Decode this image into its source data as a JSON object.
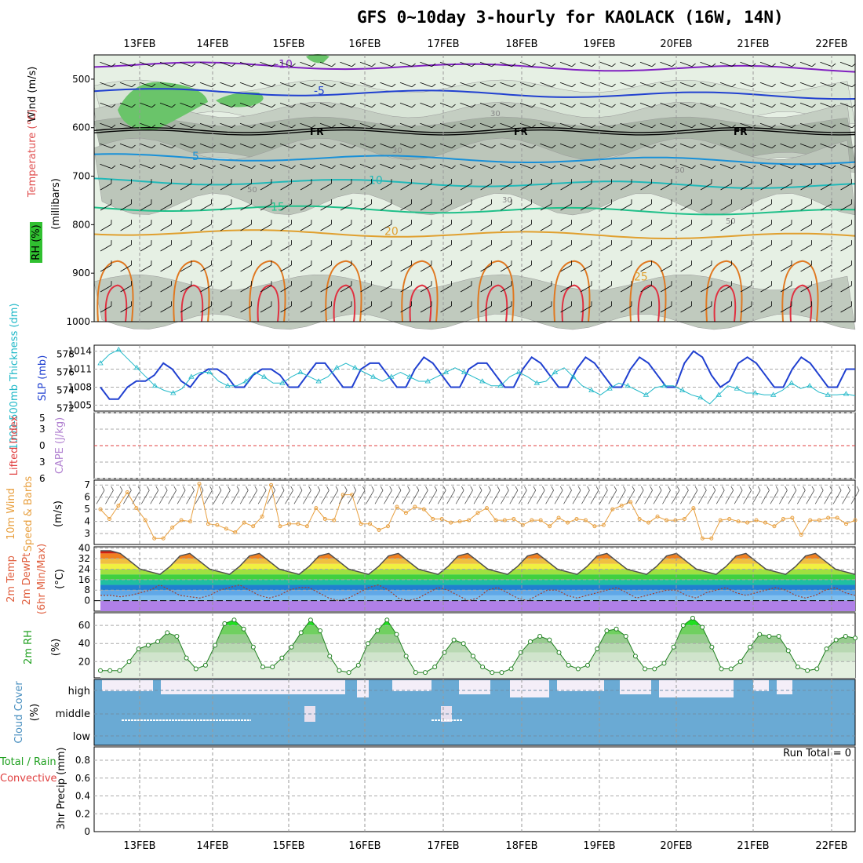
{
  "title": "GFS 0~10day 3-hourly for KAOLACK (16W, 14N)",
  "dates": [
    "13FEB",
    "14FEB",
    "15FEB",
    "16FEB",
    "17FEB",
    "18FEB",
    "19FEB",
    "20FEB",
    "21FEB",
    "22FEB"
  ],
  "colors": {
    "grid": "#aaaaaa",
    "frame": "#000000",
    "slp": "#2040d0",
    "thick": "#20b8c8",
    "wind10": "#e8a040",
    "temp": "#505050",
    "rh": "#20c020",
    "cloud": "#6aaad4",
    "cloudbg": "#f4eef8",
    "cape": "#b080d0",
    "li": "#e04040"
  },
  "labels": {
    "upper_y": {
      "wind": "Wind (m/s)",
      "temp": "Temperature (°C)",
      "rh": "RH (%)",
      "mb": "(millibars)"
    },
    "slp_y": {
      "thick": "1000-500mb Thickness (dm)",
      "slp": "SLP (mb)"
    },
    "li_y": {
      "li": "Lifted Index",
      "cape": "CAPE (J/kg)"
    },
    "wind_y": {
      "main": "10m Wind Speed & Barbs",
      "unit": "(m/s)"
    },
    "temp_y": {
      "main": "2m Temp",
      "sub": "2m DewPt",
      "sub2": "(6hr Min/Max)",
      "unit": "(°C)"
    },
    "rh_y": {
      "main": "2m RH",
      "unit": "(%)"
    },
    "cloud_y": {
      "main": "Cloud Cover",
      "unit": "(%)"
    },
    "cloud_levels": [
      "high",
      "middle",
      "low"
    ],
    "precip_y": {
      "main": "3hr Precip (mm)",
      "total": "Total / Rain",
      "conv": "Convective"
    },
    "run_total": "Run Total = 0",
    "contour_labels": {
      "fr": "FR",
      "m10": "-10",
      "m5": "-5",
      "p5": "5",
      "p10": "10",
      "p15": "15",
      "p20": "20",
      "p25": "25",
      "rh30": "30",
      "rh50": "50"
    }
  },
  "chart_data": [
    {
      "type": "contour",
      "name": "meteogram-upper",
      "title": "GFS 0~10day 3-hourly for KAOLACK (16W, 14N)",
      "y_axis": {
        "label": "millibars",
        "ticks": [
          500,
          600,
          700,
          800,
          900,
          1000
        ],
        "range": [
          450,
          1000
        ]
      },
      "temperature_isotherms": [
        -10,
        -5,
        0,
        5,
        10,
        15,
        20,
        25
      ],
      "freezing_level_mb": 605,
      "rh_shading_levels": [
        30,
        50,
        70,
        90
      ]
    },
    {
      "type": "line",
      "name": "slp-thickness",
      "x": "3-hourly 13FEB-22FEB",
      "y_left": {
        "label": "1000-500mb Thickness (dm)",
        "ticks": [
          572,
          574,
          576,
          578
        ]
      },
      "y_right": {
        "label": "SLP (mb)",
        "ticks": [
          1005,
          1008,
          1011,
          1014
        ]
      },
      "series": [
        {
          "name": "SLP (mb)",
          "values": [
            1008,
            1006,
            1006,
            1008,
            1009,
            1009,
            1010,
            1012,
            1011,
            1009,
            1008,
            1010,
            1011,
            1011,
            1010,
            1008,
            1008,
            1010,
            1011,
            1011,
            1010,
            1008,
            1008,
            1010,
            1012,
            1012,
            1010,
            1008,
            1008,
            1011,
            1012,
            1012,
            1010,
            1008,
            1008,
            1011,
            1013,
            1012,
            1010,
            1008,
            1008,
            1011,
            1012,
            1012,
            1010,
            1008,
            1008,
            1011,
            1013,
            1012,
            1010,
            1008,
            1008,
            1011,
            1013,
            1012,
            1010,
            1008,
            1008,
            1011,
            1013,
            1012,
            1010,
            1008,
            1008,
            1012,
            1014,
            1013,
            1010,
            1008,
            1009,
            1012,
            1013,
            1012,
            1010,
            1008,
            1008,
            1011,
            1013,
            1012,
            1010,
            1008,
            1008,
            1011,
            1011
          ]
        },
        {
          "name": "1000-500mb Thickness (dm)",
          "values": [
            577,
            578,
            578.5,
            577.5,
            576.5,
            575.5,
            574.5,
            574,
            573.7,
            574.2,
            575.5,
            576,
            576,
            575,
            574.5,
            574.5,
            575,
            576,
            575.5,
            574.8,
            574.8,
            575.5,
            576,
            575.5,
            575,
            575.5,
            576.5,
            577,
            576.5,
            576,
            575.5,
            575,
            575.5,
            576,
            575.5,
            575,
            575,
            575.5,
            576,
            576.5,
            576,
            575.5,
            575,
            574.5,
            574.5,
            575.5,
            576,
            575.5,
            574.8,
            575,
            576,
            576.5,
            575.5,
            574.5,
            574,
            573.5,
            574.2,
            574.8,
            574.5,
            574,
            573.5,
            574.3,
            574.5,
            574.5,
            574,
            573.5,
            573.2,
            572.5,
            573.5,
            574.5,
            574.2,
            573.7,
            573.7,
            573.5,
            573.5,
            574,
            574.8,
            574.2,
            574.5,
            573.8,
            573.5,
            573.5,
            573.6,
            573.4
          ]
        }
      ]
    },
    {
      "type": "line",
      "name": "lifted-index-cape",
      "y_axis": {
        "label": "Lifted Index",
        "ticks": [
          -5,
          -3,
          0,
          3,
          6
        ]
      },
      "series": [
        {
          "name": "CAPE (J/kg)",
          "values": []
        }
      ]
    },
    {
      "type": "line",
      "name": "10m-wind",
      "y_axis": {
        "label": "(m/s)",
        "ticks": [
          3,
          4,
          5,
          6,
          7
        ]
      },
      "series": [
        {
          "name": "10m Wind Speed",
          "values": [
            5,
            4.2,
            5.3,
            6.4,
            5.1,
            4.1,
            2.6,
            2.6,
            3.5,
            4.1,
            4,
            7.1,
            3.8,
            3.7,
            3.4,
            3.1,
            3.9,
            3.6,
            4.4,
            7,
            3.6,
            3.8,
            3.8,
            3.6,
            5.1,
            4.2,
            4.1,
            6.2,
            6.2,
            3.8,
            3.8,
            3.3,
            3.6,
            5.2,
            4.7,
            5.2,
            5,
            4.2,
            4.2,
            3.9,
            4,
            4.1,
            4.7,
            5.1,
            4.1,
            4.1,
            4.2,
            3.7,
            4.1,
            4.1,
            3.6,
            4.3,
            3.9,
            4.2,
            4.1,
            3.6,
            3.7,
            5,
            5.3,
            5.6,
            4.2,
            3.9,
            4.4,
            4.1,
            4.1,
            4.2,
            5.1,
            2.6,
            2.6,
            4.1,
            4.2,
            4,
            3.9,
            4.1,
            3.9,
            3.6,
            4.2,
            4.3,
            2.9,
            4.1,
            4.1,
            4.3,
            4.3,
            3.8,
            4.1
          ]
        }
      ]
    },
    {
      "type": "area",
      "name": "2m-temperature",
      "y_axis": {
        "label": "(°C)",
        "ticks": [
          0,
          8,
          16,
          24,
          32,
          40
        ],
        "range": [
          -8,
          40
        ]
      },
      "series": [
        {
          "name": "2m Temp",
          "values": [
            38,
            38,
            36,
            30,
            24,
            22,
            20,
            26,
            34,
            36,
            30,
            24,
            22,
            20,
            26,
            34,
            36,
            30,
            24,
            22,
            20,
            26,
            34,
            36,
            30,
            24,
            22,
            20,
            26,
            34,
            36,
            30,
            24,
            22,
            20,
            26,
            34,
            36,
            30,
            24,
            22,
            20,
            26,
            34,
            36,
            30,
            24,
            22,
            20,
            26,
            34,
            36,
            30,
            24,
            22,
            20,
            26,
            34,
            36,
            30,
            24,
            22,
            20,
            26,
            34,
            36,
            30,
            24,
            22,
            20,
            26,
            34,
            36,
            30,
            24,
            22,
            20
          ]
        },
        {
          "name": "2m DewPt",
          "values": [
            4,
            4,
            3,
            4,
            6,
            8,
            12,
            8,
            4,
            3,
            2,
            4,
            8,
            10,
            12,
            8,
            4,
            2,
            4,
            8,
            10,
            10,
            6,
            2,
            0,
            2,
            6,
            10,
            12,
            8,
            2,
            0,
            2,
            6,
            10,
            8,
            4,
            0,
            2,
            8,
            10,
            6,
            2,
            0,
            4,
            8,
            8,
            4,
            2,
            4,
            6,
            8,
            10,
            6,
            2,
            4,
            6,
            8,
            8,
            4,
            2,
            6,
            8,
            10,
            6,
            4,
            6,
            8,
            10,
            8,
            4,
            2,
            4,
            8,
            10,
            6,
            4
          ]
        }
      ]
    },
    {
      "type": "area",
      "name": "2m-rh",
      "y_axis": {
        "label": "(%)",
        "ticks": [
          20,
          40,
          60
        ]
      },
      "series": [
        {
          "name": "2m RH",
          "values": [
            10,
            10,
            10,
            20,
            34,
            38,
            42,
            52,
            48,
            24,
            12,
            16,
            38,
            62,
            66,
            56,
            36,
            14,
            14,
            24,
            36,
            52,
            66,
            54,
            26,
            10,
            8,
            16,
            40,
            54,
            66,
            50,
            26,
            8,
            8,
            14,
            30,
            44,
            40,
            26,
            14,
            8,
            8,
            12,
            30,
            42,
            48,
            44,
            30,
            16,
            12,
            16,
            34,
            54,
            56,
            48,
            26,
            12,
            12,
            18,
            36,
            60,
            68,
            58,
            36,
            12,
            12,
            20,
            36,
            50,
            48,
            48,
            32,
            14,
            10,
            12,
            34,
            44,
            48,
            46
          ]
        }
      ]
    },
    {
      "type": "area",
      "name": "cloud-cover",
      "categories": [
        "high",
        "middle",
        "low"
      ],
      "y_axis": {
        "label": "(%)"
      }
    },
    {
      "type": "bar",
      "name": "3hr-precip",
      "y_axis": {
        "label": "3hr Precip (mm)",
        "ticks": [
          0,
          0.2,
          0.4,
          0.6,
          0.8
        ],
        "range": [
          0,
          0.95
        ]
      },
      "series": [
        {
          "name": "Total / Rain",
          "values": []
        },
        {
          "name": "Convective",
          "values": []
        }
      ]
    }
  ]
}
